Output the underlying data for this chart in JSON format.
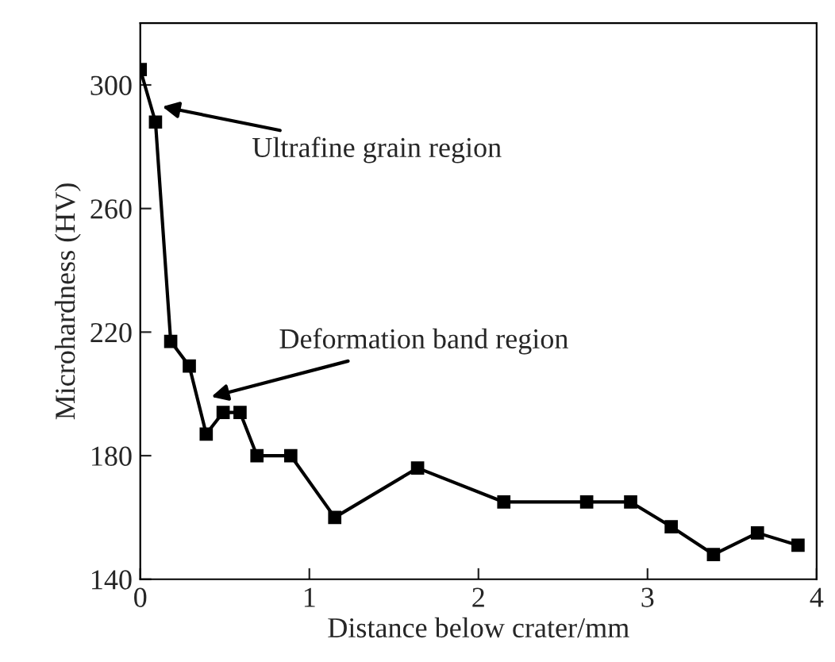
{
  "chart_data": {
    "type": "line",
    "xlabel": "Distance below crater/mm",
    "ylabel": "Microhardness (HV)",
    "x": [
      0,
      0.09,
      0.18,
      0.29,
      0.39,
      0.49,
      0.59,
      0.69,
      0.89,
      1.15,
      1.64,
      2.15,
      2.64,
      2.9,
      3.14,
      3.39,
      3.65,
      3.89
    ],
    "series": [
      {
        "color": "#000000",
        "values": [
          305,
          288,
          217,
          209,
          187,
          194,
          194,
          180,
          180,
          160,
          176,
          165,
          165,
          165,
          157,
          148,
          155,
          151
        ]
      }
    ],
    "xlim": [
      0,
      4
    ],
    "xticks": [
      0,
      1,
      2,
      3,
      4
    ],
    "ylim": [
      140,
      320
    ],
    "yticks": [
      140,
      180,
      220,
      260,
      300
    ],
    "marker": "square",
    "line_style": "solid",
    "grid": false,
    "legend": false,
    "annotations": [
      "Ultrafine grain region",
      "Deformation band region"
    ]
  }
}
